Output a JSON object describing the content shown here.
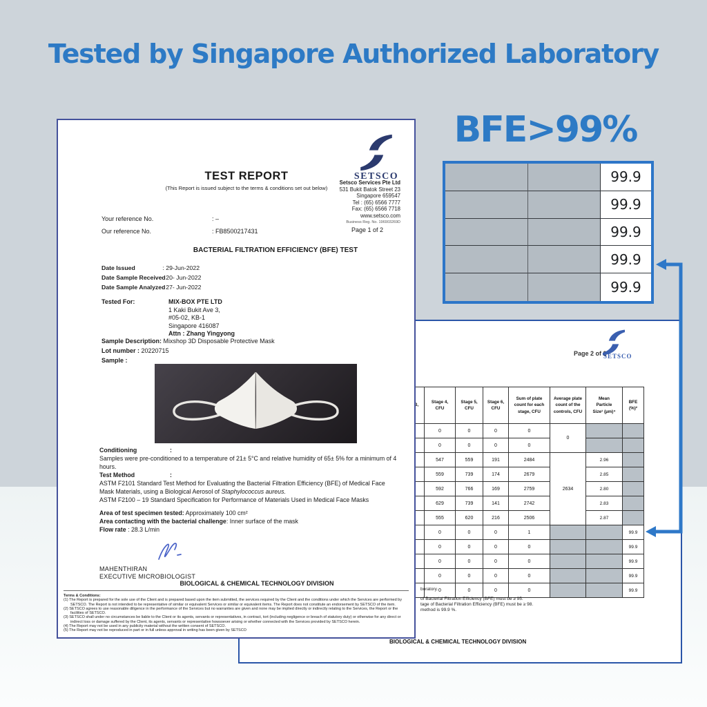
{
  "page": {
    "title": "Tested by Singapore Authorized Laboratory",
    "bfe_headline": "BFE>99%",
    "colors": {
      "accent_blue": "#2d7ac5",
      "logo_navy": "#2b3a6e",
      "page2_border": "#2a55a8",
      "crop_border": "#2d76c8",
      "gray_cell": "#b9c1c8",
      "background_top": "#cdd4da"
    }
  },
  "report1": {
    "title": "TEST REPORT",
    "subtitle": "(This Report is issued subject to the terms & conditions set out below)",
    "logo_text": "SETSCO",
    "company_lines": [
      "Setsco Services Pte Ltd",
      "531 Bukit Batok Street 23",
      "Singapore 659547",
      "Tel : (65) 6566 7777",
      "Fax: (65) 6566 7718",
      "www.setsco.com"
    ],
    "company_reg": "Business Reg. No. 196903269D",
    "page_label": "Page 1 of 2",
    "refs": [
      {
        "label": "Your reference No.",
        "value": ": –"
      },
      {
        "label": "Our reference No.",
        "value": ": FB8500217431"
      }
    ],
    "test_heading": "BACTERIAL FILTRATION EFFICIENCY (BFE) TEST",
    "dates": [
      {
        "label": "Date Issued",
        "value": ": 29-Jun-2022"
      },
      {
        "label": "Date Sample Received",
        "value": ": 20- Jun-2022"
      },
      {
        "label": "Date Sample Analyzed",
        "value": ": 27- Jun-2022"
      }
    ],
    "tested_for_label": "Tested For:",
    "tested_for_lines": [
      "MIX-BOX PTE LTD",
      "1 Kaki Bukit Ave 3,",
      "#05-02, KB-1",
      "Singapore 416087",
      "Attn : Zhang Yingyong"
    ],
    "sample_description_label": "Sample Description:",
    "sample_description": " Mixshop 3D Disposable Protective Mask",
    "lot_label": "Lot number :",
    "lot_value": " 20220715",
    "sample_label": "Sample :",
    "colon": ":",
    "conditioning_label": "Conditioning",
    "conditioning_line1": "Samples were pre-conditioned to a temperature of 21± 5°C and relative humidity of 65± 5% for a minimum of 4",
    "conditioning_line2": "hours.",
    "test_method_label": "Test Method",
    "method_line1": "ASTM F2101 Standard Test Method for Evaluating the Bacterial Filtration Efficiency (BFE) of Medical Face",
    "method_line2a": "Mask Materials, using a Biological Aerosol of ",
    "method_line2b": "Staphylococcus aureus.",
    "method_line3": "ASTM F2100 – 19 Standard Specification for Performance of Materials Used in Medical Face Masks",
    "area_tested_label": "Area of test specimen tested:",
    "area_tested_value": " Approximately 100 cm²",
    "area_contact_label": "Area contacting with the bacterial challenge",
    "area_contact_value": ": Inner surface of the mask",
    "flow_label": "Flow rate",
    "flow_value": " : 28.3 L/min",
    "signatory_name": "MAHENTHIRAN",
    "signatory_title": "EXECUTIVE MICROBIOLOGIST",
    "division": "BIOLOGICAL & CHEMICAL TECHNOLOGY DIVISION",
    "terms_heading": "Terms & Conditions:",
    "terms": [
      "(1) The Report is prepared for the sole use of the Client and is prepared based upon the item submitted, the services required by the Client and the conditions under which the Services are performed by SETSCO. The Report is not intended to be representative of similar or equivalent Services or similar or equivalent items. The Report does not constitute an endorsement by SETSCO of the item.",
      "(2) SETSCO agrees to use reasonable diligence in the performance of the Services but no warranties are given and none may be implied directly or indirectly relating to the Services, the Report or the facilities of SETSCO.",
      "(3) SETSCO shall under no circumstances be liable to the Client or its agents, servants or representatives, in contract, tort (including negligence or breach of statutory duty) or otherwise for any direct or indirect loss or damage suffered by the Client, its agents, servants or representative howsoever arising or whether connected with the Services provided by SETSCO herein.",
      "(4) The Report may not be used in any publicity material without the written consent of SETSCO.",
      "(5) The Report may not be reproduced in part or in full unless approval in writing has been given by SETSCO"
    ]
  },
  "report2": {
    "page_label": "Page 2 of 2",
    "logo_text": "SETSCO",
    "table": {
      "headers": [
        "3,",
        "Stage 4,\nCFU",
        "Stage 5,\nCFU",
        "Stage 6,\nCFU",
        "Sum of plate\ncount for each\nstage, CFU",
        "Average plate\ncount of the\ncontrols, CFU",
        "Mean\nParticle\nSize¹ (µm)⁴",
        "BFE\n(%)²"
      ],
      "stage4": [
        "0",
        "0",
        "547",
        "559",
        "592",
        "629",
        "555",
        "0",
        "0",
        "0",
        "0",
        "0"
      ],
      "stage5": [
        "0",
        "0",
        "559",
        "739",
        "766",
        "739",
        "620",
        "0",
        "0",
        "0",
        "0",
        "0"
      ],
      "stage6": [
        "0",
        "0",
        "191",
        "174",
        "169",
        "141",
        "216",
        "0",
        "0",
        "0",
        "0",
        "0"
      ],
      "sum": [
        "0",
        "0",
        "2484",
        "2679",
        "2759",
        "2742",
        "2506",
        "1",
        "0",
        "0",
        "0",
        "0"
      ],
      "average_spans": [
        "0",
        "2634"
      ],
      "mean": [
        "",
        "",
        "2.96",
        "2.85",
        "2.80",
        "2.83",
        "2.87",
        "",
        "",
        "",
        "",
        ""
      ],
      "bfe": [
        "",
        "",
        "",
        "",
        "",
        "",
        "",
        "99.9",
        "99.9",
        "99.9",
        "99.9",
        "99.9"
      ]
    },
    "notes": [
      "boratory.",
      "of Bacterial Filtration Efficiency (BFE) must be ≥ 95.",
      "tage of Bacterial Filtration Efficiency (BFE) must be ≥ 98.",
      "method is 99.9 %."
    ],
    "division": "BIOLOGICAL & CHEMICAL TECHNOLOGY DIVISION"
  },
  "zoom_panel": {
    "values": [
      "99.9",
      "99.9",
      "99.9",
      "99.9",
      "99.9"
    ]
  }
}
